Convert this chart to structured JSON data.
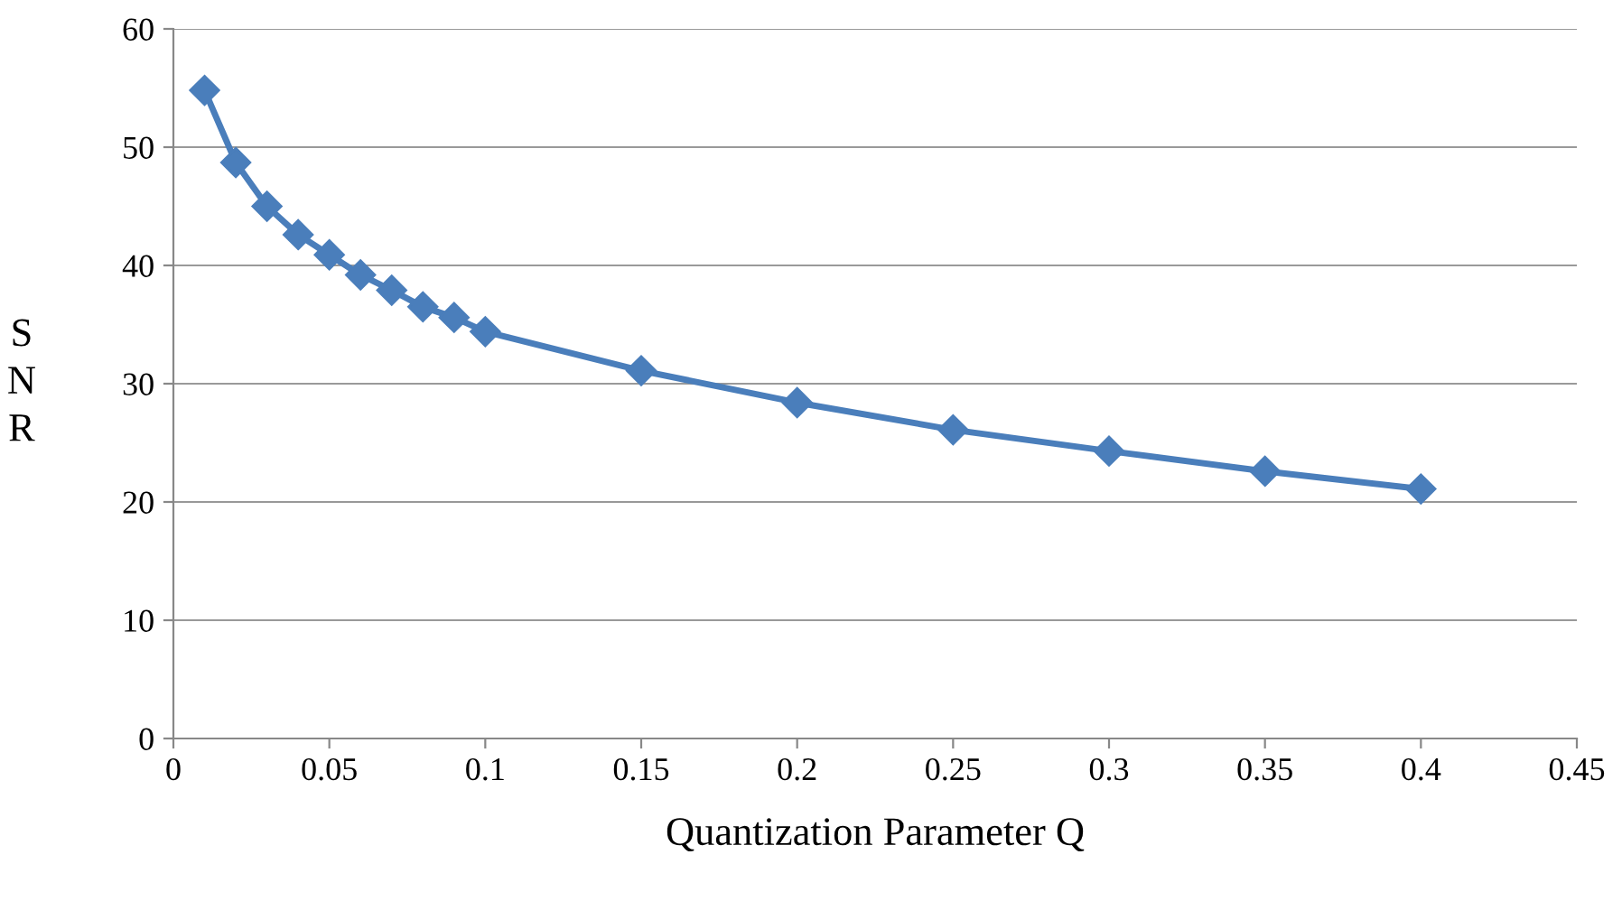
{
  "chart_data": {
    "type": "line",
    "xlabel": "Quantization Parameter Q",
    "ylabel": "SNR",
    "x": [
      0.01,
      0.02,
      0.03,
      0.04,
      0.05,
      0.06,
      0.07,
      0.08,
      0.09,
      0.1,
      0.15,
      0.2,
      0.25,
      0.3,
      0.35,
      0.4
    ],
    "series": [
      {
        "color": "#4a7ebb",
        "values": [
          54.8,
          48.7,
          45.0,
          42.6,
          40.9,
          39.2,
          37.9,
          36.5,
          35.6,
          34.4,
          31.1,
          28.4,
          26.1,
          24.3,
          22.6,
          21.1
        ]
      }
    ],
    "xlim": [
      0,
      0.45
    ],
    "xticks": [
      0,
      0.05,
      0.1,
      0.15,
      0.2,
      0.25,
      0.3,
      0.35,
      0.4,
      0.45
    ],
    "ylim": [
      0,
      60
    ],
    "yticks": [
      0,
      10,
      20,
      30,
      40,
      50,
      60
    ],
    "grid": "y",
    "marker": "diamond",
    "line_style": "solid",
    "legend": false
  }
}
